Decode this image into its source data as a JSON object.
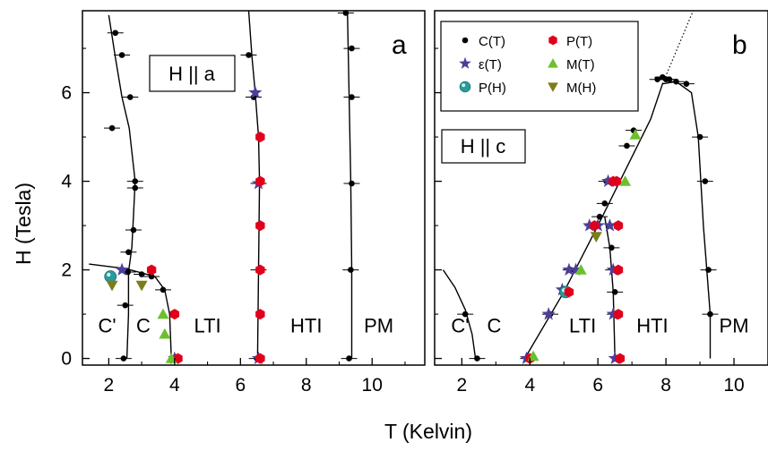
{
  "chart_data": [
    {
      "type": "scatter",
      "panel_letter": "a",
      "field_label": "H || a",
      "xlabel": "T (Kelvin)",
      "ylabel": "H (Tesla)",
      "xlim": [
        1.2,
        11.6
      ],
      "ylim": [
        -0.15,
        7.85
      ],
      "xticks": [
        2,
        4,
        6,
        8,
        10
      ],
      "yticks": [
        0,
        2,
        4,
        6
      ],
      "region_labels": [
        {
          "text": "C'",
          "x": 1.95,
          "y": 0.75
        },
        {
          "text": "C",
          "x": 3.05,
          "y": 0.75
        },
        {
          "text": "LTI",
          "x": 5.0,
          "y": 0.75
        },
        {
          "text": "HTI",
          "x": 8.0,
          "y": 0.75
        },
        {
          "text": "PM",
          "x": 10.2,
          "y": 0.75
        }
      ],
      "lines": [
        [
          [
            2.55,
            0
          ],
          [
            2.6,
            1.0
          ],
          [
            2.6,
            1.95
          ],
          [
            2.7,
            2.5
          ],
          [
            2.75,
            3.2
          ],
          [
            2.8,
            4.0
          ],
          [
            2.62,
            5.2
          ],
          [
            2.4,
            5.9
          ],
          [
            2.2,
            6.8
          ],
          [
            2.0,
            7.75
          ]
        ],
        [
          [
            1.4,
            2.13
          ],
          [
            2.5,
            2.03
          ],
          [
            3.4,
            1.85
          ],
          [
            3.7,
            1.55
          ],
          [
            3.85,
            1.0
          ],
          [
            3.9,
            0
          ]
        ],
        [
          [
            6.25,
            7.85
          ],
          [
            6.35,
            6.8
          ],
          [
            6.45,
            6.0
          ],
          [
            6.55,
            5.0
          ],
          [
            6.58,
            4.0
          ],
          [
            6.55,
            2.0
          ],
          [
            6.52,
            0
          ]
        ],
        [
          [
            9.25,
            7.85
          ],
          [
            9.3,
            6.0
          ],
          [
            9.35,
            4.0
          ],
          [
            9.38,
            2.0
          ],
          [
            9.38,
            0
          ]
        ]
      ],
      "series": [
        {
          "name": "C(T)",
          "marker": "circle",
          "color": "#000000",
          "x": [
            2.45,
            2.5,
            2.58,
            2.6,
            2.75,
            2.8,
            2.8,
            2.65,
            2.4,
            2.2,
            2.1,
            3.0,
            3.3,
            3.65,
            6.25,
            6.4,
            6.55,
            6.55,
            6.5,
            9.3,
            9.35,
            9.38,
            9.38,
            9.38,
            9.2
          ],
          "y": [
            0,
            1.2,
            1.95,
            2.4,
            2.9,
            4.0,
            3.85,
            5.9,
            6.85,
            7.35,
            5.2,
            1.9,
            1.85,
            1.55,
            6.85,
            5.9,
            3.95,
            2.0,
            0,
            0,
            2.0,
            3.95,
            5.9,
            7.0,
            7.8
          ]
        },
        {
          "name": "ε(T)",
          "marker": "star",
          "color": "#4b3f9a",
          "x": [
            2.4,
            6.45,
            6.55,
            6.55,
            4.0
          ],
          "y": [
            2.0,
            6.0,
            3.95,
            0.0,
            0.0
          ]
        },
        {
          "name": "P(H)",
          "marker": "ball",
          "color": "#2a9a9a",
          "x": [
            2.05
          ],
          "y": [
            1.85
          ]
        },
        {
          "name": "P(T)",
          "marker": "hexagon",
          "color": "#e0001b",
          "x": [
            3.3,
            4.0,
            4.1,
            6.6,
            6.6,
            6.6,
            6.6,
            6.6,
            6.6
          ],
          "y": [
            2.0,
            1.0,
            0.0,
            5.0,
            4.0,
            3.0,
            2.0,
            1.0,
            0.0
          ]
        },
        {
          "name": "M(T)",
          "marker": "triangle-up",
          "color": "#6cc02d",
          "x": [
            3.65,
            3.7,
            3.9
          ],
          "y": [
            1.0,
            0.55,
            0.0
          ]
        },
        {
          "name": "M(H)",
          "marker": "triangle-down",
          "color": "#7c7d1a",
          "x": [
            2.1,
            3.0
          ],
          "y": [
            1.65,
            1.65
          ]
        }
      ]
    },
    {
      "type": "scatter",
      "panel_letter": "b",
      "field_label": "H || c",
      "xlabel": "T (Kelvin)",
      "ylabel": "H (Tesla)",
      "xlim": [
        1.2,
        11.0
      ],
      "ylim": [
        -0.15,
        7.85
      ],
      "xticks": [
        2,
        4,
        6,
        8,
        10
      ],
      "yticks": [
        0,
        2,
        4,
        6
      ],
      "region_labels": [
        {
          "text": "C'",
          "x": 1.95,
          "y": 0.75
        },
        {
          "text": "C",
          "x": 2.95,
          "y": 0.75
        },
        {
          "text": "LTI",
          "x": 5.55,
          "y": 0.75
        },
        {
          "text": "HTI",
          "x": 7.6,
          "y": 0.75
        },
        {
          "text": "PM",
          "x": 10.0,
          "y": 0.75
        }
      ],
      "lines": [
        [
          [
            1.45,
            2.0
          ],
          [
            1.8,
            1.6
          ],
          [
            2.1,
            1.1
          ],
          [
            2.3,
            0.55
          ],
          [
            2.4,
            0
          ]
        ],
        [
          [
            3.85,
            0
          ],
          [
            5.0,
            1.5
          ],
          [
            6.0,
            3.0
          ],
          [
            7.0,
            4.55
          ],
          [
            7.55,
            5.4
          ],
          [
            7.9,
            6.2
          ],
          [
            8.3,
            6.25
          ],
          [
            8.75,
            6.0
          ],
          [
            8.95,
            5.0
          ],
          [
            9.1,
            3.0
          ],
          [
            9.2,
            2.0
          ],
          [
            9.3,
            1.0
          ],
          [
            9.3,
            0
          ]
        ],
        [
          [
            6.2,
            3.2
          ],
          [
            6.35,
            2.5
          ],
          [
            6.45,
            1.5
          ],
          [
            6.5,
            0
          ]
        ]
      ],
      "dotted_line": [
        [
          7.9,
          6.2
        ],
        [
          8.8,
          7.85
        ]
      ],
      "series": [
        {
          "name": "C(T)",
          "marker": "circle",
          "color": "#000000",
          "x": [
            2.1,
            2.45,
            3.95,
            4.6,
            5.2,
            5.85,
            6.05,
            6.2,
            6.25,
            6.4,
            6.45,
            6.5,
            6.5,
            6.85,
            7.05,
            7.75,
            7.9,
            8.0,
            8.1,
            8.3,
            8.6,
            9.0,
            9.15,
            9.25,
            9.3
          ],
          "y": [
            1.0,
            0.0,
            0.0,
            1.0,
            2.0,
            3.0,
            3.2,
            3.5,
            4.0,
            2.5,
            2.0,
            1.5,
            1.0,
            4.8,
            5.15,
            6.3,
            6.35,
            6.3,
            6.3,
            6.25,
            6.2,
            5.0,
            4.0,
            2.0,
            1.0
          ]
        },
        {
          "name": "ε(T)",
          "marker": "star",
          "color": "#4b3f9a",
          "x": [
            3.9,
            4.55,
            4.95,
            5.15,
            5.35,
            5.75,
            6.0,
            6.3,
            6.35,
            6.45,
            6.45,
            6.5
          ],
          "y": [
            0.0,
            1.0,
            1.55,
            2.0,
            2.0,
            3.0,
            3.0,
            4.0,
            3.0,
            2.0,
            1.0,
            0.0
          ]
        },
        {
          "name": "P(H)",
          "marker": "ball",
          "color": "#2a9a9a",
          "x": [
            5.05
          ],
          "y": [
            1.5
          ]
        },
        {
          "name": "P(T)",
          "marker": "hexagon",
          "color": "#e0001b",
          "x": [
            4.0,
            5.15,
            5.9,
            6.45,
            6.55,
            6.6,
            6.6,
            6.6,
            6.65
          ],
          "y": [
            0.0,
            1.5,
            3.0,
            4.0,
            4.0,
            3.0,
            2.0,
            1.0,
            0.0
          ]
        },
        {
          "name": "M(T)",
          "marker": "triangle-up",
          "color": "#6cc02d",
          "x": [
            4.1,
            5.5,
            6.8,
            7.1
          ],
          "y": [
            0.05,
            2.0,
            4.0,
            5.05
          ]
        },
        {
          "name": "M(H)",
          "marker": "triangle-down",
          "color": "#7c7d1a",
          "x": [
            5.95
          ],
          "y": [
            2.75
          ]
        }
      ]
    }
  ],
  "legend": {
    "placement": "top-left of panel b",
    "columns": [
      [
        {
          "label": "C(T)",
          "marker": "circle",
          "color": "#000000"
        },
        {
          "label": "ε(T)",
          "marker": "star",
          "color": "#4b3f9a"
        },
        {
          "label": "P(H)",
          "marker": "ball",
          "color": "#2a9a9a"
        }
      ],
      [
        {
          "label": "P(T)",
          "marker": "hexagon",
          "color": "#e0001b"
        },
        {
          "label": "M(T)",
          "marker": "triangle-up",
          "color": "#6cc02d"
        },
        {
          "label": "M(H)",
          "marker": "triangle-down",
          "color": "#7c7d1a"
        }
      ]
    ]
  },
  "colors": {
    "axis": "#000000",
    "phase_line": "#000000",
    "legend_c_t": "#000000",
    "legend_p_t": "#e0001b",
    "legend_eps_t": "#4b3f9a",
    "legend_m_t": "#6cc02d",
    "legend_p_h": "#2a9a9a",
    "legend_m_h": "#7c7d1a"
  }
}
